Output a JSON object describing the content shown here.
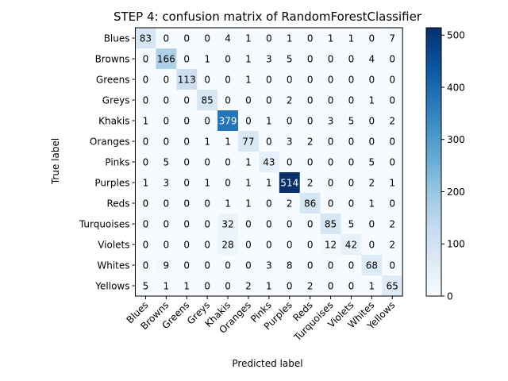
{
  "chart_data": {
    "type": "heatmap",
    "title": "STEP 4: confusion matrix of RandomForestClassifier",
    "xlabel": "Predicted label",
    "ylabel": "True label",
    "categories": [
      "Blues",
      "Browns",
      "Greens",
      "Greys",
      "Khakis",
      "Oranges",
      "Pinks",
      "Purples",
      "Reds",
      "Turquoises",
      "Violets",
      "Whites",
      "Yellows"
    ],
    "matrix": [
      [
        83,
        0,
        0,
        0,
        4,
        1,
        0,
        1,
        0,
        1,
        1,
        0,
        7
      ],
      [
        0,
        166,
        0,
        1,
        0,
        1,
        3,
        5,
        0,
        0,
        0,
        4,
        0
      ],
      [
        0,
        0,
        113,
        0,
        0,
        1,
        0,
        0,
        0,
        0,
        0,
        0,
        0
      ],
      [
        0,
        0,
        0,
        85,
        0,
        0,
        0,
        2,
        0,
        0,
        0,
        1,
        0
      ],
      [
        1,
        0,
        0,
        0,
        379,
        0,
        1,
        0,
        0,
        3,
        5,
        0,
        2
      ],
      [
        0,
        0,
        0,
        1,
        1,
        77,
        0,
        3,
        2,
        0,
        0,
        0,
        0
      ],
      [
        0,
        5,
        0,
        0,
        0,
        1,
        43,
        0,
        0,
        0,
        0,
        5,
        0
      ],
      [
        1,
        3,
        0,
        1,
        0,
        1,
        1,
        514,
        2,
        0,
        0,
        2,
        1
      ],
      [
        0,
        0,
        0,
        0,
        1,
        1,
        0,
        2,
        86,
        0,
        0,
        1,
        0
      ],
      [
        0,
        0,
        0,
        0,
        32,
        0,
        0,
        0,
        0,
        85,
        5,
        0,
        2
      ],
      [
        0,
        0,
        0,
        0,
        28,
        0,
        0,
        0,
        0,
        12,
        42,
        0,
        2
      ],
      [
        0,
        9,
        0,
        0,
        0,
        0,
        3,
        8,
        0,
        0,
        0,
        68,
        0
      ],
      [
        5,
        1,
        1,
        0,
        0,
        2,
        1,
        0,
        2,
        0,
        0,
        1,
        65
      ]
    ],
    "colormap": "Blues",
    "vmin": 0,
    "vmax": 514,
    "colorbar_ticks": [
      0,
      100,
      200,
      300,
      400,
      500
    ],
    "text_threshold": 257,
    "grid": false
  }
}
